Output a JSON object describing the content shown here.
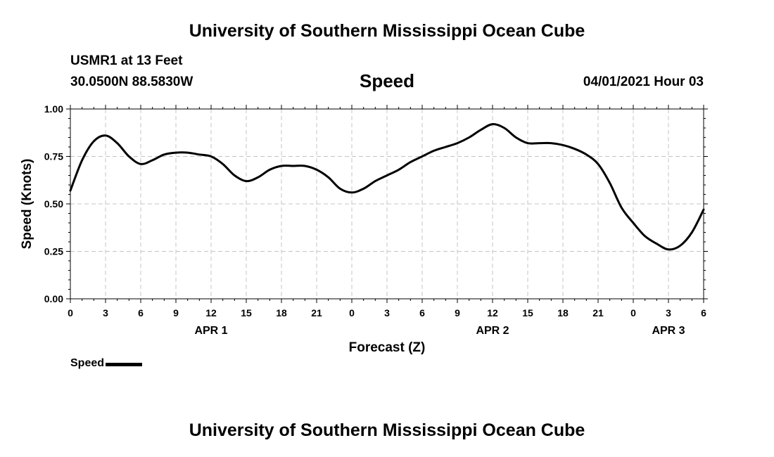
{
  "header": {
    "title": "University of Southern Mississippi Ocean Cube",
    "station": "USMR1 at 13 Feet",
    "coords": "30.0500N  88.5830W",
    "datetime": "04/01/2021 Hour 03"
  },
  "footer": {
    "title": "University of Southern Mississippi Ocean Cube"
  },
  "legend": {
    "label": "Speed"
  },
  "chart_data": {
    "type": "line",
    "title": "Speed",
    "xlabel": "Forecast (Z)",
    "ylabel": "Speed (Knots)",
    "xlim": [
      0,
      54
    ],
    "ylim": [
      0,
      1.0
    ],
    "grid": true,
    "x_ticks": [
      0,
      3,
      6,
      9,
      12,
      15,
      18,
      21,
      24,
      27,
      30,
      33,
      36,
      39,
      42,
      45,
      48,
      51,
      54
    ],
    "x_tick_labels": [
      "0",
      "3",
      "6",
      "9",
      "12",
      "15",
      "18",
      "21",
      "0",
      "3",
      "6",
      "9",
      "12",
      "15",
      "18",
      "21",
      "0",
      "3",
      "6"
    ],
    "y_ticks": [
      0,
      0.25,
      0.5,
      0.75,
      1.0
    ],
    "y_tick_labels": [
      "0.00",
      "0.25",
      "0.50",
      "0.75",
      "1.00"
    ],
    "date_labels": [
      {
        "x": 12,
        "label": "APR 1"
      },
      {
        "x": 36,
        "label": "APR 2"
      },
      {
        "x": 51,
        "label": "APR 3"
      }
    ],
    "series": [
      {
        "name": "Speed",
        "color": "#000000",
        "x": [
          0,
          1,
          2,
          3,
          4,
          5,
          6,
          7,
          8,
          9,
          10,
          11,
          12,
          13,
          14,
          15,
          16,
          17,
          18,
          19,
          20,
          21,
          22,
          23,
          24,
          25,
          26,
          27,
          28,
          29,
          30,
          31,
          32,
          33,
          34,
          35,
          36,
          37,
          38,
          39,
          40,
          41,
          42,
          43,
          44,
          45,
          46,
          47,
          48,
          49,
          50,
          51,
          52,
          53,
          54
        ],
        "values": [
          0.57,
          0.73,
          0.83,
          0.86,
          0.82,
          0.75,
          0.71,
          0.73,
          0.76,
          0.77,
          0.77,
          0.76,
          0.75,
          0.71,
          0.65,
          0.62,
          0.64,
          0.68,
          0.7,
          0.7,
          0.7,
          0.68,
          0.64,
          0.58,
          0.56,
          0.58,
          0.62,
          0.65,
          0.68,
          0.72,
          0.75,
          0.78,
          0.8,
          0.82,
          0.85,
          0.89,
          0.92,
          0.9,
          0.85,
          0.82,
          0.82,
          0.82,
          0.81,
          0.79,
          0.76,
          0.71,
          0.61,
          0.48,
          0.4,
          0.33,
          0.29,
          0.26,
          0.28,
          0.35,
          0.47
        ]
      }
    ]
  }
}
